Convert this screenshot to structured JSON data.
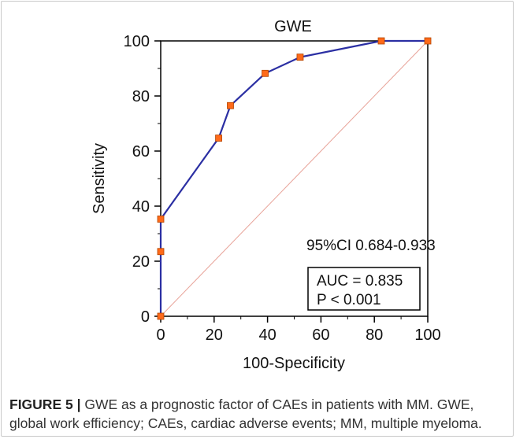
{
  "figure": {
    "caption_label": "FIGURE 5 |",
    "caption_text": " GWE as a prognostic factor of CAEs in patients with MM. GWE, global work efficiency; CAEs, cardiac adverse events; MM, multiple myeloma."
  },
  "chart_data": {
    "type": "line",
    "title": "GWE",
    "xlabel": "100-Specificity",
    "ylabel": "Sensitivity",
    "xlim": [
      0,
      100
    ],
    "ylim": [
      0,
      100
    ],
    "xticks": [
      0,
      20,
      40,
      60,
      80,
      100
    ],
    "yticks": [
      0,
      20,
      40,
      60,
      80,
      100
    ],
    "series": [
      {
        "color": "#2b2fa3",
        "marker_color": "#ff6a1a",
        "x": [
          0,
          0,
          0,
          21.7,
          26.1,
          39.1,
          52.2,
          82.6,
          100
        ],
        "y": [
          0,
          23.5,
          35.3,
          64.7,
          76.5,
          88.2,
          94.1,
          100,
          100
        ]
      }
    ],
    "reference_line": {
      "x": [
        0,
        100
      ],
      "y": [
        0,
        100
      ],
      "color": "#e8a49a"
    },
    "annotations": {
      "ci": "95%CI 0.684-0.933",
      "auc": "AUC = 0.835",
      "p": "P < 0.001"
    },
    "grid": false
  }
}
